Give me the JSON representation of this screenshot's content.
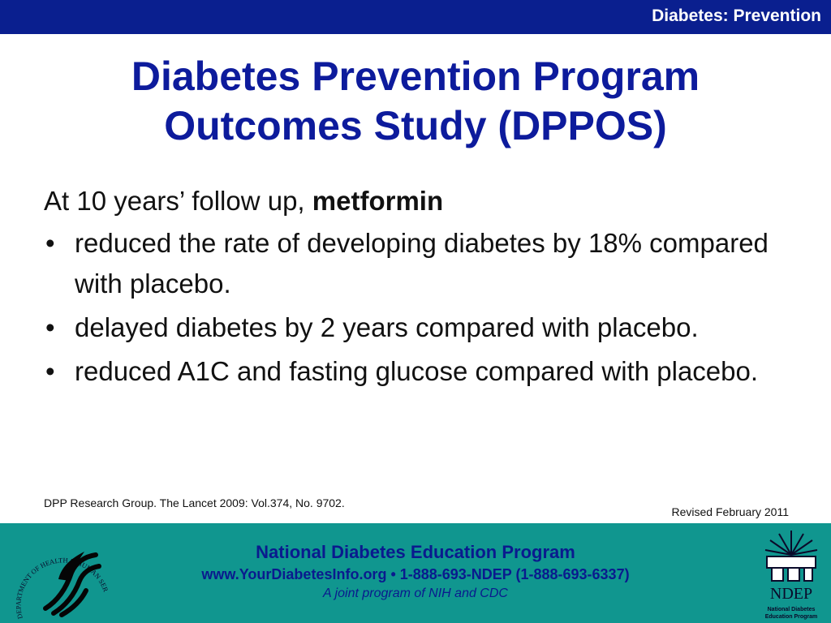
{
  "header": {
    "section_title": "Diabetes: Prevention"
  },
  "slide": {
    "title_line1": "Diabetes Prevention Program",
    "title_line2": "Outcomes Study (DPPOS)",
    "intro": "At 10 years’ follow up, ",
    "intro_bold": "metformin",
    "bullets": [
      "reduced the rate of developing diabetes by 18% compared with placebo.",
      "delayed diabetes by 2 years compared with placebo.",
      "reduced A1C and fasting glucose compared with placebo."
    ],
    "citation": "DPP Research Group. The Lancet 2009: Vol.374, No. 9702.",
    "revised": "Revised February 2011"
  },
  "footer": {
    "program_name": "National Diabetes Education Program",
    "contact": "www.YourDiabetesInfo.org • 1-888-693-NDEP (1-888-693-6337)",
    "tagline": "A joint program of NIH and CDC"
  },
  "logos": {
    "hhs_seal_text": "DEPARTMENT OF HEALTH & HUMAN SERVICES · USA",
    "ndep_abbr": "NDEP",
    "ndep_caption": "National Diabetes Education Program"
  },
  "colors": {
    "header_bar": "#0a1f8f",
    "title": "#0d1b9c",
    "footer_bar": "#10968f"
  }
}
